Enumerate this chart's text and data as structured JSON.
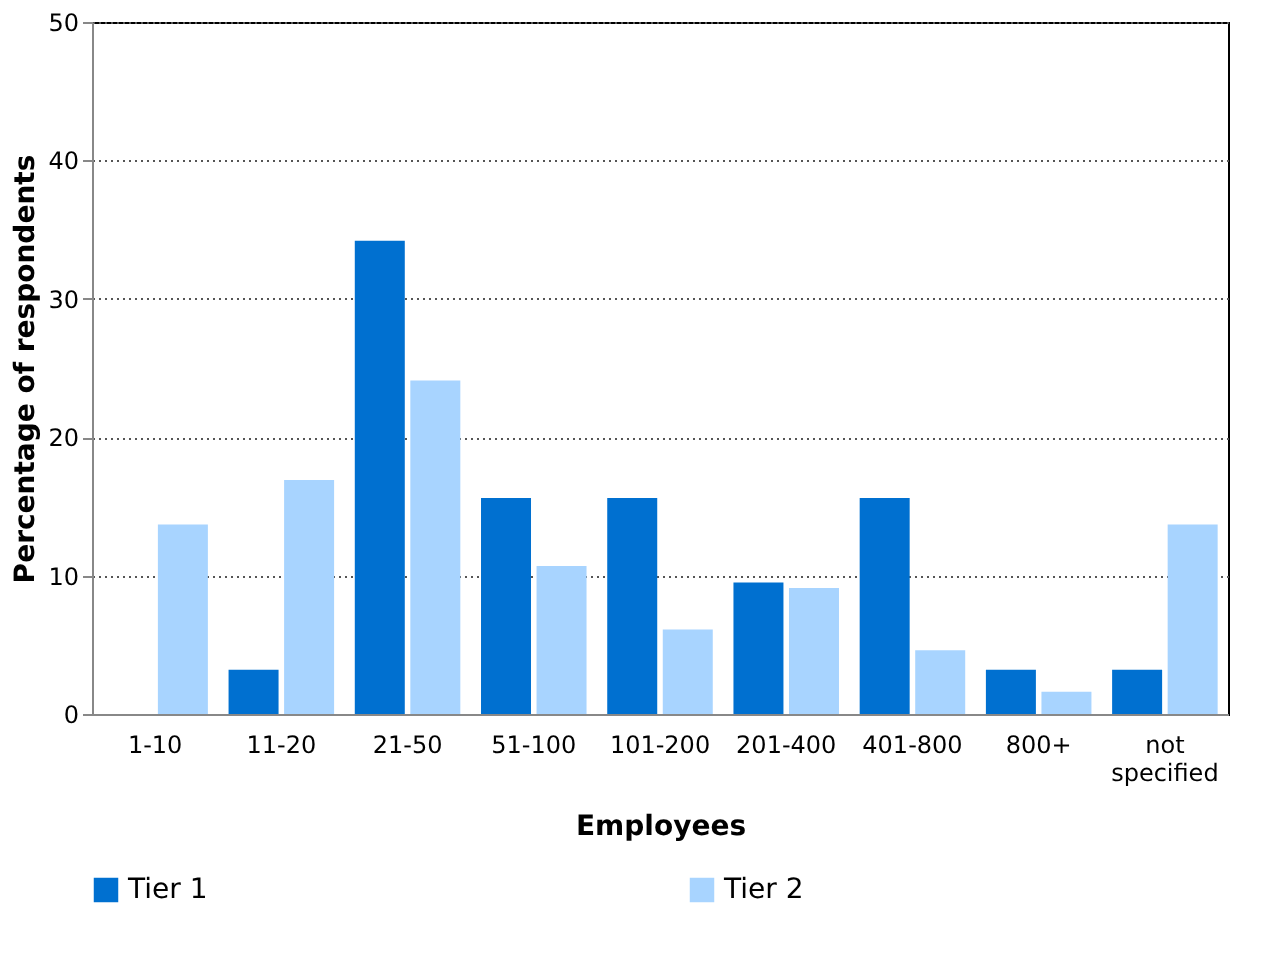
{
  "chart_data": {
    "type": "bar",
    "xlabel": "Employees",
    "ylabel": "Percentage  of  respondents",
    "categories": [
      "1-10",
      "11-20",
      "21-50",
      "51-100",
      "101-200",
      "201-400",
      "401-800",
      "800+",
      "not specified"
    ],
    "series": [
      {
        "name": "Tier 1",
        "color": "#0070d0",
        "values": [
          0,
          3.2,
          34.2,
          15.6,
          15.6,
          9.5,
          15.6,
          3.2,
          3.2
        ]
      },
      {
        "name": "Tier 2",
        "color": "#a8d4ff",
        "values": [
          13.7,
          16.9,
          24.1,
          10.7,
          6.1,
          9.1,
          4.6,
          1.6,
          13.7
        ]
      }
    ],
    "ylim": [
      0,
      50
    ],
    "yticks": [
      0,
      10,
      20,
      30,
      40,
      50
    ],
    "grid": "y",
    "legend": "bottom"
  }
}
